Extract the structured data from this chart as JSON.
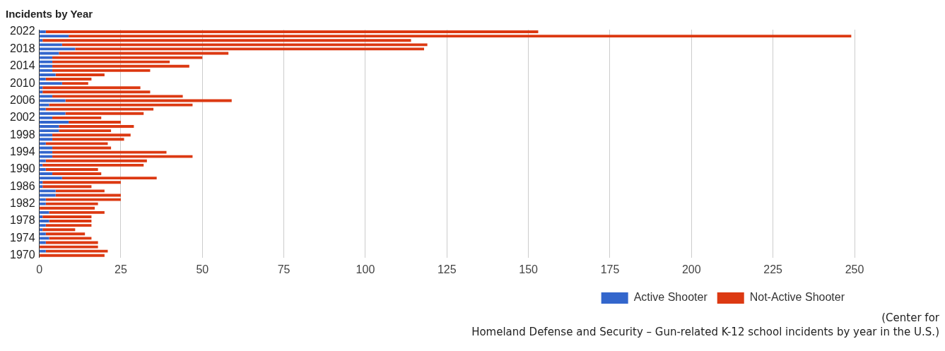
{
  "chart_data": {
    "type": "bar",
    "orientation": "horizontal",
    "stacked": true,
    "title": "Incidents by Year",
    "categories": [
      "2022",
      null,
      null,
      null,
      "2018",
      null,
      null,
      null,
      "2014",
      null,
      null,
      null,
      "2010",
      null,
      null,
      null,
      "2006",
      null,
      null,
      null,
      "2002",
      null,
      null,
      null,
      "1998",
      null,
      null,
      null,
      "1994",
      null,
      null,
      null,
      "1990",
      null,
      null,
      null,
      "1986",
      null,
      null,
      null,
      "1982",
      null,
      null,
      null,
      "1978",
      null,
      null,
      null,
      "1974",
      null,
      null,
      null,
      "1970"
    ],
    "series": [
      {
        "name": "Active Shooter",
        "color": "#3366cc",
        "values": [
          2,
          9,
          1,
          7,
          11,
          6,
          4,
          4,
          4,
          4,
          5,
          2,
          7,
          1,
          1,
          4,
          8,
          3,
          2,
          8,
          4,
          9,
          6,
          6,
          4,
          4,
          2,
          4,
          4,
          4,
          2,
          1,
          2,
          4,
          7,
          1,
          1,
          5,
          5,
          2,
          2,
          0,
          3,
          1,
          3,
          2,
          1,
          2,
          3,
          2,
          0,
          2,
          0
        ]
      },
      {
        "name": "Not-Active Shooter",
        "color": "#dc3912",
        "values": [
          151,
          240,
          113,
          112,
          107,
          52,
          46,
          36,
          42,
          30,
          15,
          14,
          8,
          30,
          33,
          40,
          51,
          44,
          33,
          24,
          15,
          16,
          23,
          16,
          24,
          22,
          19,
          18,
          35,
          43,
          31,
          31,
          16,
          15,
          29,
          24,
          15,
          15,
          20,
          23,
          16,
          17,
          17,
          15,
          13,
          14,
          10,
          12,
          13,
          16,
          18,
          19,
          20
        ]
      }
    ],
    "xlim": [
      0,
      250
    ],
    "xticks": [
      0,
      25,
      50,
      75,
      100,
      125,
      150,
      175,
      200,
      225,
      250
    ],
    "grid": "x",
    "legend": "bottom right",
    "annotations": [
      "(Center for\nHomeland Defense and Security – Gun-related K-12 school incidents by year in the U.S.)"
    ]
  }
}
